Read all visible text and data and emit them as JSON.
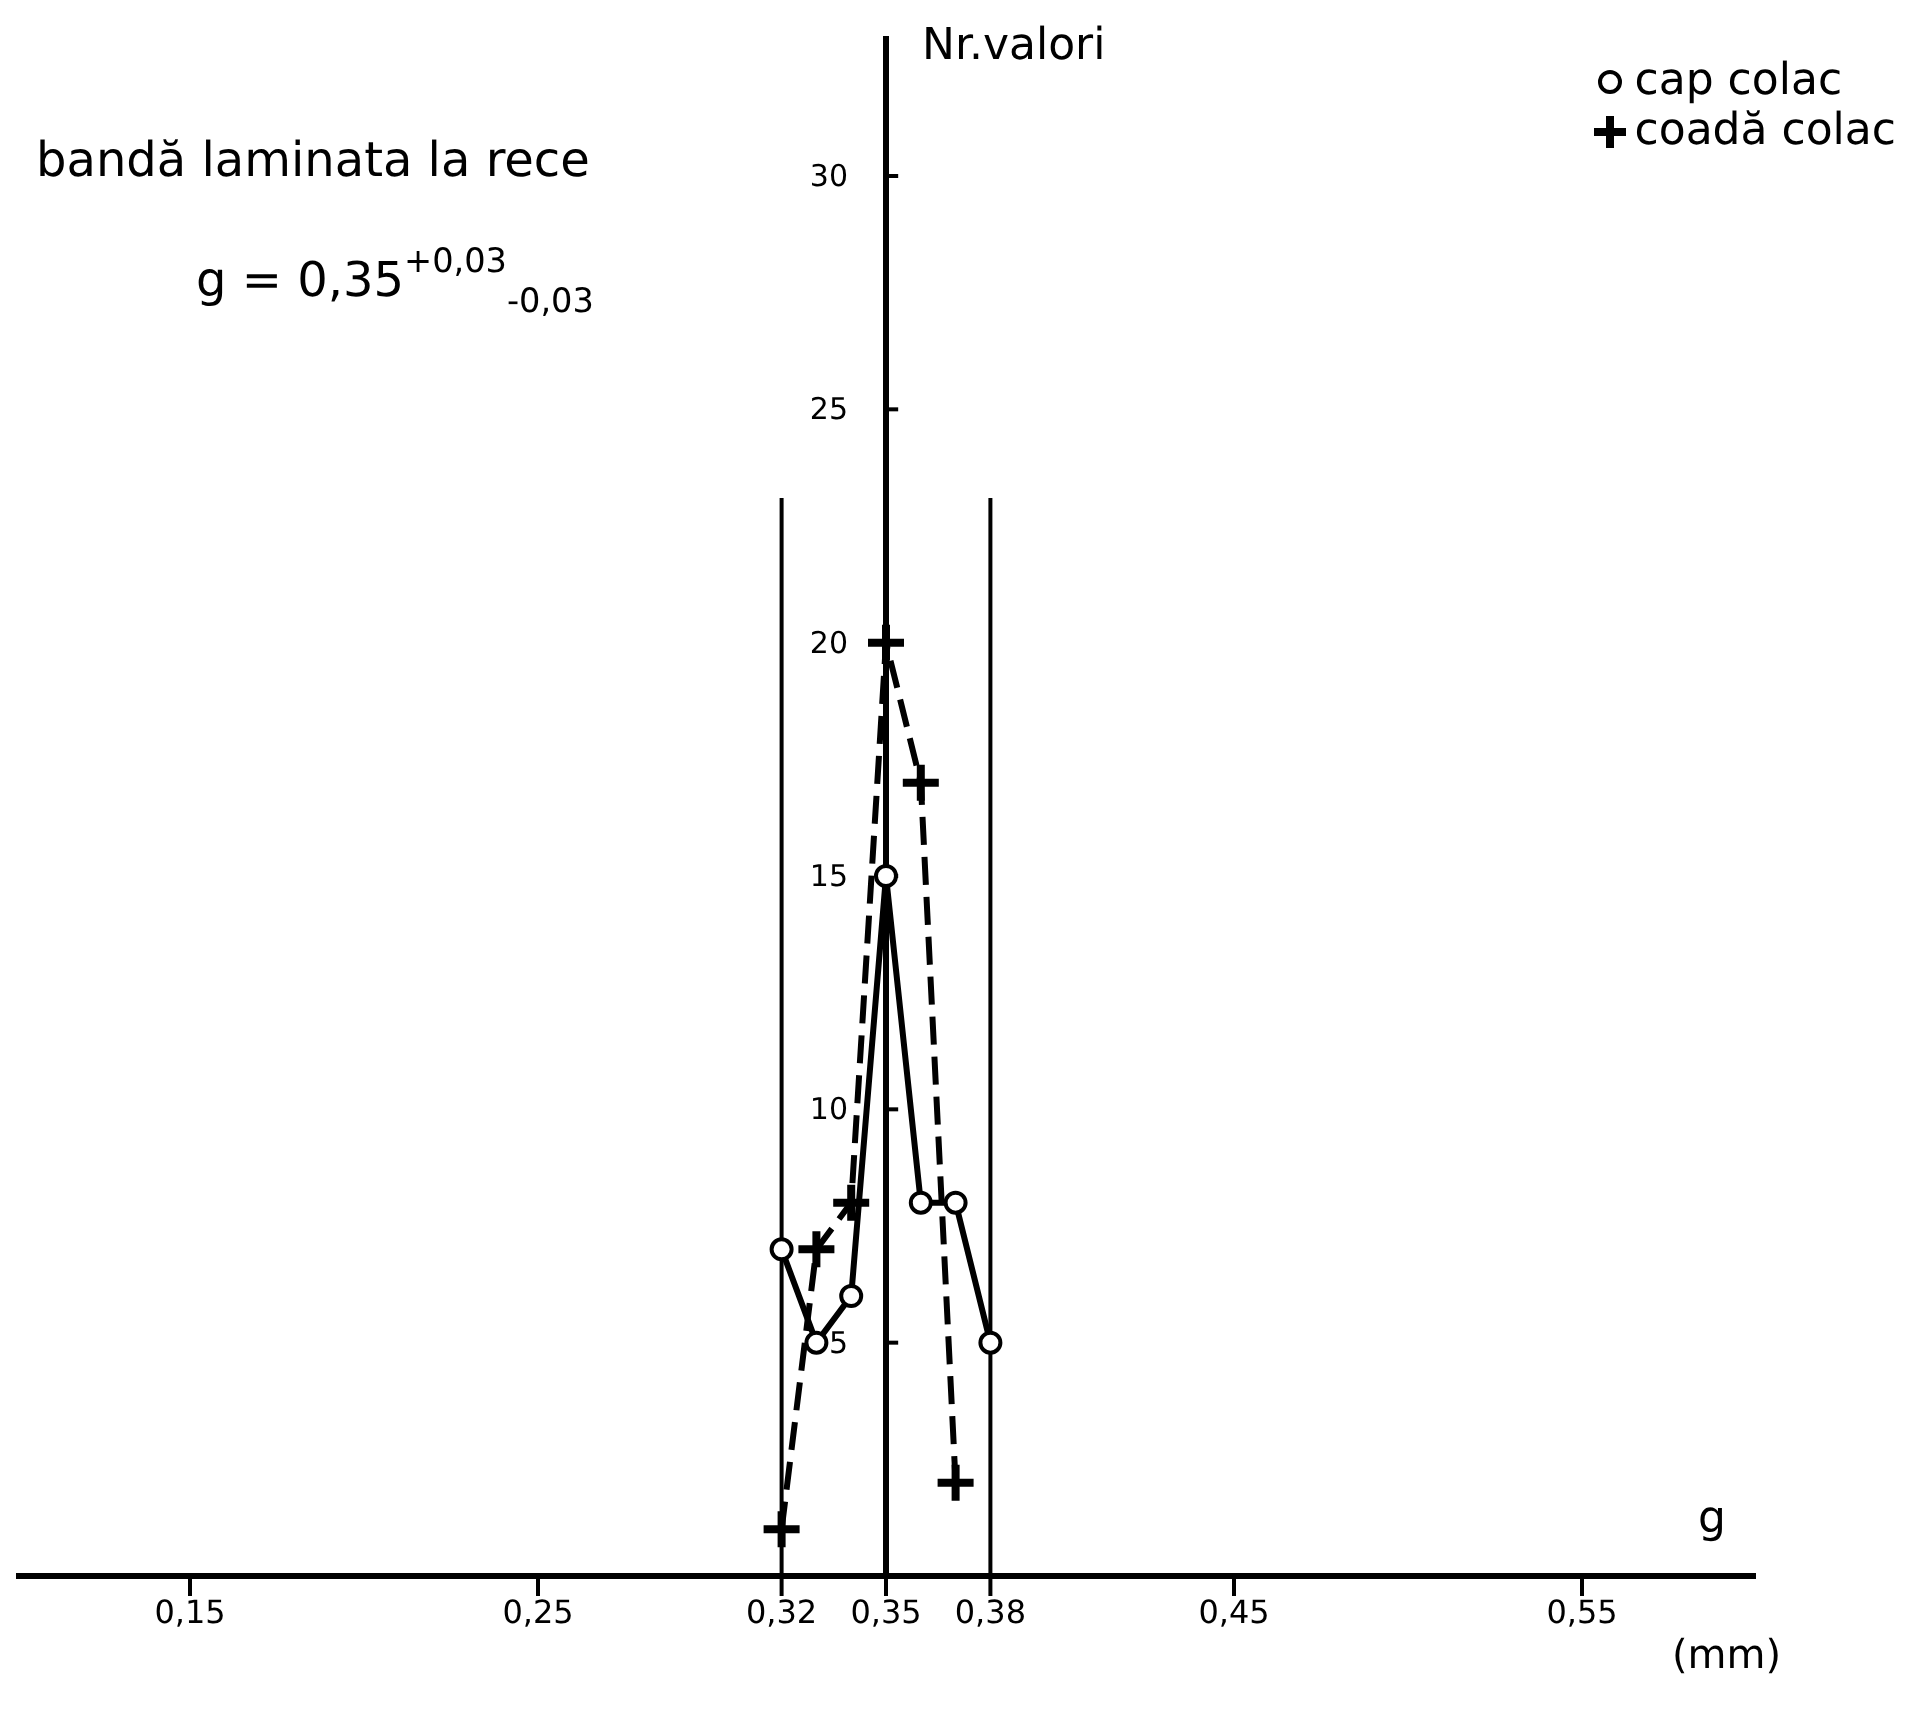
{
  "chart_data": {
    "type": "line",
    "xlabel": "g",
    "ylabel": "Nr.valori",
    "annotations": [
      "(mm)",
      "bandă laminata la rece",
      "g = 0,35$^{+0,03}$$_{-0,03}$"
    ],
    "series": [
      {
        "name": "cap colac",
        "color": "#000000",
        "marker": "circle",
        "line_style": "solid",
        "x": [
          0.32,
          0.33,
          0.34,
          0.35,
          0.36,
          0.37,
          0.38
        ],
        "values": [
          7,
          5,
          6,
          15,
          8,
          8,
          5
        ]
      },
      {
        "name": "coadă colac",
        "color": "#000000",
        "marker": "cross",
        "line_style": "dashed",
        "x": [
          0.32,
          0.33,
          0.34,
          0.35,
          0.36,
          0.37
        ],
        "values": [
          1,
          7,
          8,
          20,
          17,
          2
        ]
      }
    ],
    "xlim": [
      0.1,
      0.6
    ],
    "ylim": [
      0,
      33
    ],
    "xticks": [
      {
        "value": 0.15,
        "label": "0,15"
      },
      {
        "value": 0.25,
        "label": "0,25"
      },
      {
        "value": 0.32,
        "label": "0,32"
      },
      {
        "value": 0.35,
        "label": "0,35"
      },
      {
        "value": 0.38,
        "label": "0,38"
      },
      {
        "value": 0.45,
        "label": "0,45"
      },
      {
        "value": 0.55,
        "label": "0,55"
      }
    ],
    "yticks": [
      5,
      10,
      15,
      20,
      25,
      30
    ],
    "ref_lines": [
      {
        "axis": "x",
        "value": 0.32,
        "label": null
      },
      {
        "axis": "x",
        "value": 0.38,
        "label": null
      }
    ],
    "grid": false,
    "legend": "top right"
  }
}
